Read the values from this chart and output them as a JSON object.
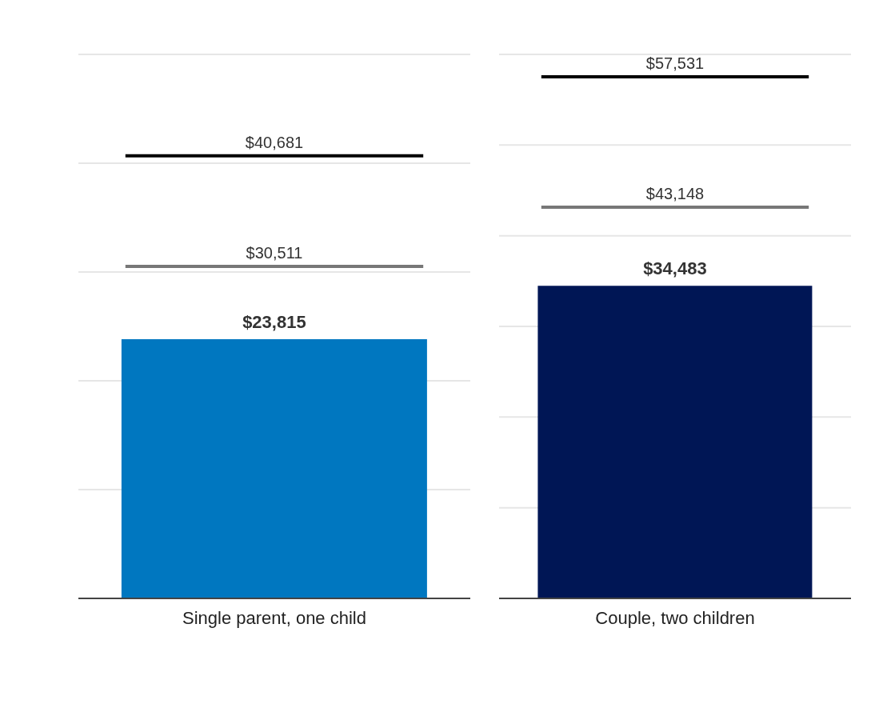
{
  "chart_data": [
    {
      "type": "bar",
      "categories": [
        "Single parent, one child"
      ],
      "values": [
        23815
      ],
      "color": "#0077c0",
      "value_labels": [
        "$23,815"
      ],
      "ylim": [
        0,
        50000
      ],
      "yticks": [
        {
          "value": 0,
          "label": null
        },
        {
          "value": 10000,
          "label": null
        },
        {
          "value": 20000,
          "label": null
        },
        {
          "value": 30000,
          "label": null
        },
        {
          "value": 40000,
          "label": null
        },
        {
          "value": 50000,
          "label": null
        }
      ],
      "grid": "y",
      "tick_labels": "x",
      "ref_lines": [
        {
          "axis": "y",
          "value": 40681,
          "label": "$40,681",
          "color": "#000000"
        },
        {
          "axis": "y",
          "value": 30511,
          "label": "$30,511",
          "color": "#777777"
        }
      ]
    },
    {
      "type": "bar",
      "categories": [
        "Couple, two children"
      ],
      "values": [
        34483
      ],
      "color": "#001655",
      "value_labels": [
        "$34,483"
      ],
      "ylim": [
        0,
        60000
      ],
      "yticks": [
        {
          "value": 0,
          "label": null
        },
        {
          "value": 10000,
          "label": null
        },
        {
          "value": 20000,
          "label": null
        },
        {
          "value": 30000,
          "label": null
        },
        {
          "value": 40000,
          "label": null
        },
        {
          "value": 50000,
          "label": null
        },
        {
          "value": 60000,
          "label": null
        }
      ],
      "grid": "y",
      "tick_labels": "x",
      "ref_lines": [
        {
          "axis": "y",
          "value": 57531,
          "label": "$57,531",
          "color": "#000000"
        },
        {
          "axis": "y",
          "value": 43148,
          "label": "$43,148",
          "color": "#777777"
        }
      ]
    }
  ]
}
